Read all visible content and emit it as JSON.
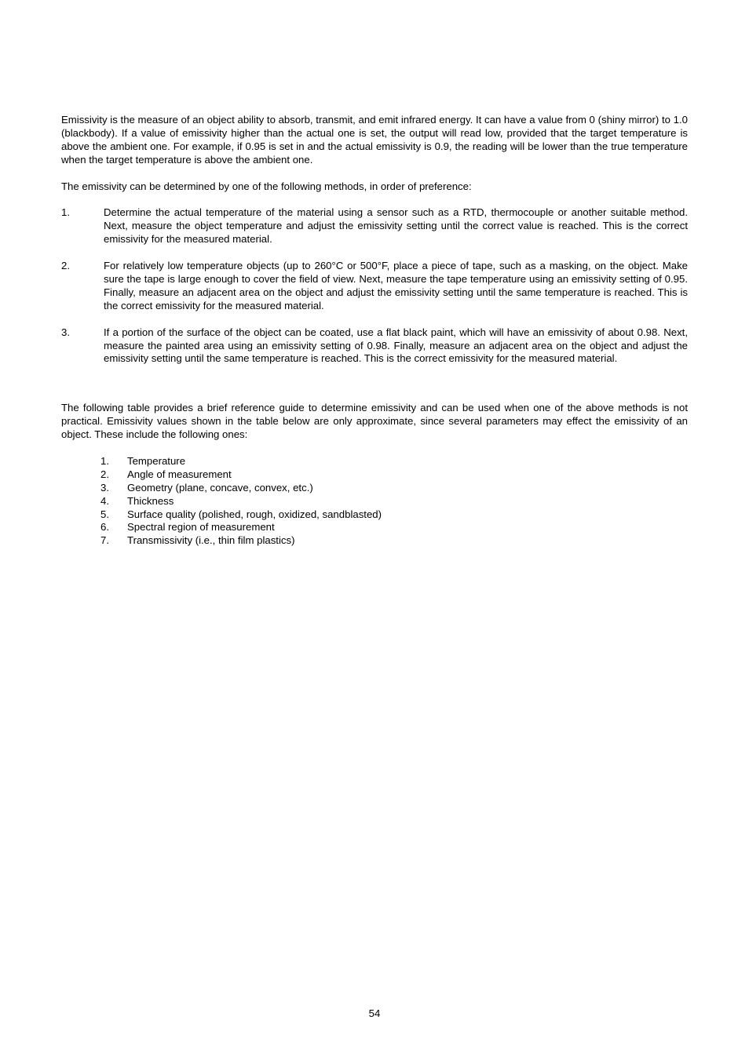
{
  "intro_para": "Emissivity is the measure of an object ability to absorb, transmit, and emit infrared energy. It can have a value from 0 (shiny mirror) to 1.0 (blackbody). If a value of emissivity higher than the actual one is set, the output will read low, provided that the target temperature is above the ambient one. For example, if 0.95 is set in and the actual emissivity is 0.9, the reading will be lower than the true temperature when the target temperature is above the ambient one.",
  "methods_lead": "The emissivity can be determined by one of the following methods, in order of preference:",
  "methods": [
    "Determine the actual temperature of the material using a sensor such as a RTD, thermocouple or another suitable method. Next, measure the object temperature and adjust the emissivity setting until the correct value is reached. This is the correct emissivity for the measured material.",
    "For relatively low temperature objects (up to 260°C or 500°F, place a piece of tape, such as a masking, on the object. Make sure the tape is large enough to cover the field of view. Next, measure the tape temperature using an emissivity setting of 0.95. Finally, measure an adjacent area on the object and adjust the emissivity setting until the same temperature is reached. This is the correct emissivity for the measured material.",
    "If a portion of the surface of the object can be coated, use a flat black paint, which will have an emissivity of about 0.98. Next, measure the painted area using an emissivity setting of 0.98. Finally, measure an adjacent area on the object and adjust the emissivity setting until the same temperature is reached. This is the correct emissivity for the measured material."
  ],
  "table_lead": "The following table provides a brief reference guide to determine emissivity and can be used when one of the above methods is not practical. Emissivity values shown in the table below are only approximate, since several parameters may effect the emissivity of an object. These include the following ones:",
  "params": [
    "Temperature",
    "Angle of measurement",
    "Geometry (plane, concave, convex, etc.)",
    "Thickness",
    "Surface quality (polished, rough, oxidized, sandblasted)",
    "Spectral region of measurement",
    "Transmissivity (i.e., thin film plastics)"
  ],
  "page_number": "54"
}
